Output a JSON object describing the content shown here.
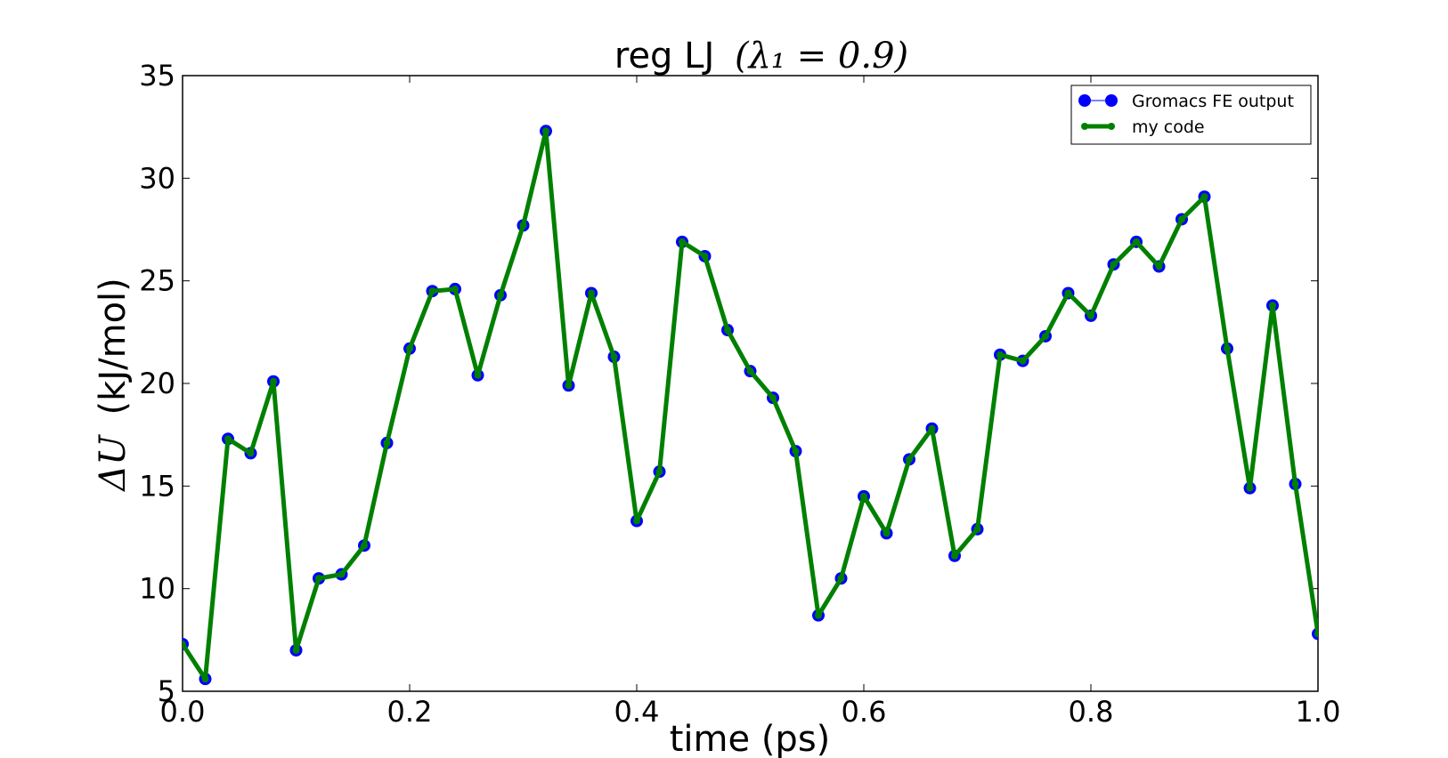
{
  "chart_data": {
    "type": "line",
    "title_text": "reg LJ",
    "title_math": "(λ₁ = 0.9)",
    "xlabel": "time (ps)",
    "ylabel_math": "ΔU",
    "ylabel_text": "(kJ/mol)",
    "xlim": [
      0.0,
      1.0
    ],
    "ylim": [
      5,
      35
    ],
    "xticks": [
      "0.0",
      "0.2",
      "0.4",
      "0.6",
      "0.8",
      "1.0"
    ],
    "yticks": [
      "5",
      "10",
      "15",
      "20",
      "25",
      "30",
      "35"
    ],
    "grid": false,
    "legend_position": "top-right",
    "x": [
      0.0,
      0.02,
      0.04,
      0.06,
      0.08,
      0.1,
      0.12,
      0.14,
      0.16,
      0.18,
      0.2,
      0.22,
      0.24,
      0.26,
      0.28,
      0.3,
      0.32,
      0.34,
      0.36,
      0.38,
      0.4,
      0.42,
      0.44,
      0.46,
      0.48,
      0.5,
      0.52,
      0.54,
      0.56,
      0.58,
      0.6,
      0.62,
      0.64,
      0.66,
      0.68,
      0.7,
      0.72,
      0.74,
      0.76,
      0.78,
      0.8,
      0.82,
      0.84,
      0.86,
      0.88,
      0.9,
      0.92,
      0.94,
      0.96,
      0.98,
      1.0
    ],
    "series": [
      {
        "name": "Gromacs FE output",
        "color": "#0000ff",
        "values": [
          7.3,
          5.6,
          17.3,
          16.6,
          20.1,
          7.0,
          10.5,
          10.7,
          12.1,
          17.1,
          21.7,
          24.5,
          24.6,
          20.4,
          24.3,
          27.7,
          32.3,
          19.9,
          24.4,
          21.3,
          13.3,
          15.7,
          26.9,
          26.2,
          22.6,
          20.6,
          19.3,
          16.7,
          8.7,
          10.5,
          14.5,
          12.7,
          16.3,
          17.8,
          11.6,
          12.9,
          21.4,
          21.1,
          22.3,
          24.4,
          23.3,
          25.8,
          26.9,
          25.7,
          28.0,
          29.1,
          21.7,
          14.9,
          23.8,
          15.1,
          7.8
        ]
      },
      {
        "name": "my code",
        "color": "#008000",
        "values": [
          7.3,
          5.6,
          17.3,
          16.6,
          20.1,
          7.0,
          10.5,
          10.7,
          12.1,
          17.1,
          21.7,
          24.5,
          24.6,
          20.4,
          24.3,
          27.7,
          32.3,
          19.9,
          24.4,
          21.3,
          13.3,
          15.7,
          26.9,
          26.2,
          22.6,
          20.6,
          19.3,
          16.7,
          8.7,
          10.5,
          14.5,
          12.7,
          16.3,
          17.8,
          11.6,
          12.9,
          21.4,
          21.1,
          22.3,
          24.4,
          23.3,
          25.8,
          26.9,
          25.7,
          28.0,
          29.1,
          21.7,
          14.9,
          23.8,
          15.1,
          7.8
        ]
      }
    ]
  }
}
